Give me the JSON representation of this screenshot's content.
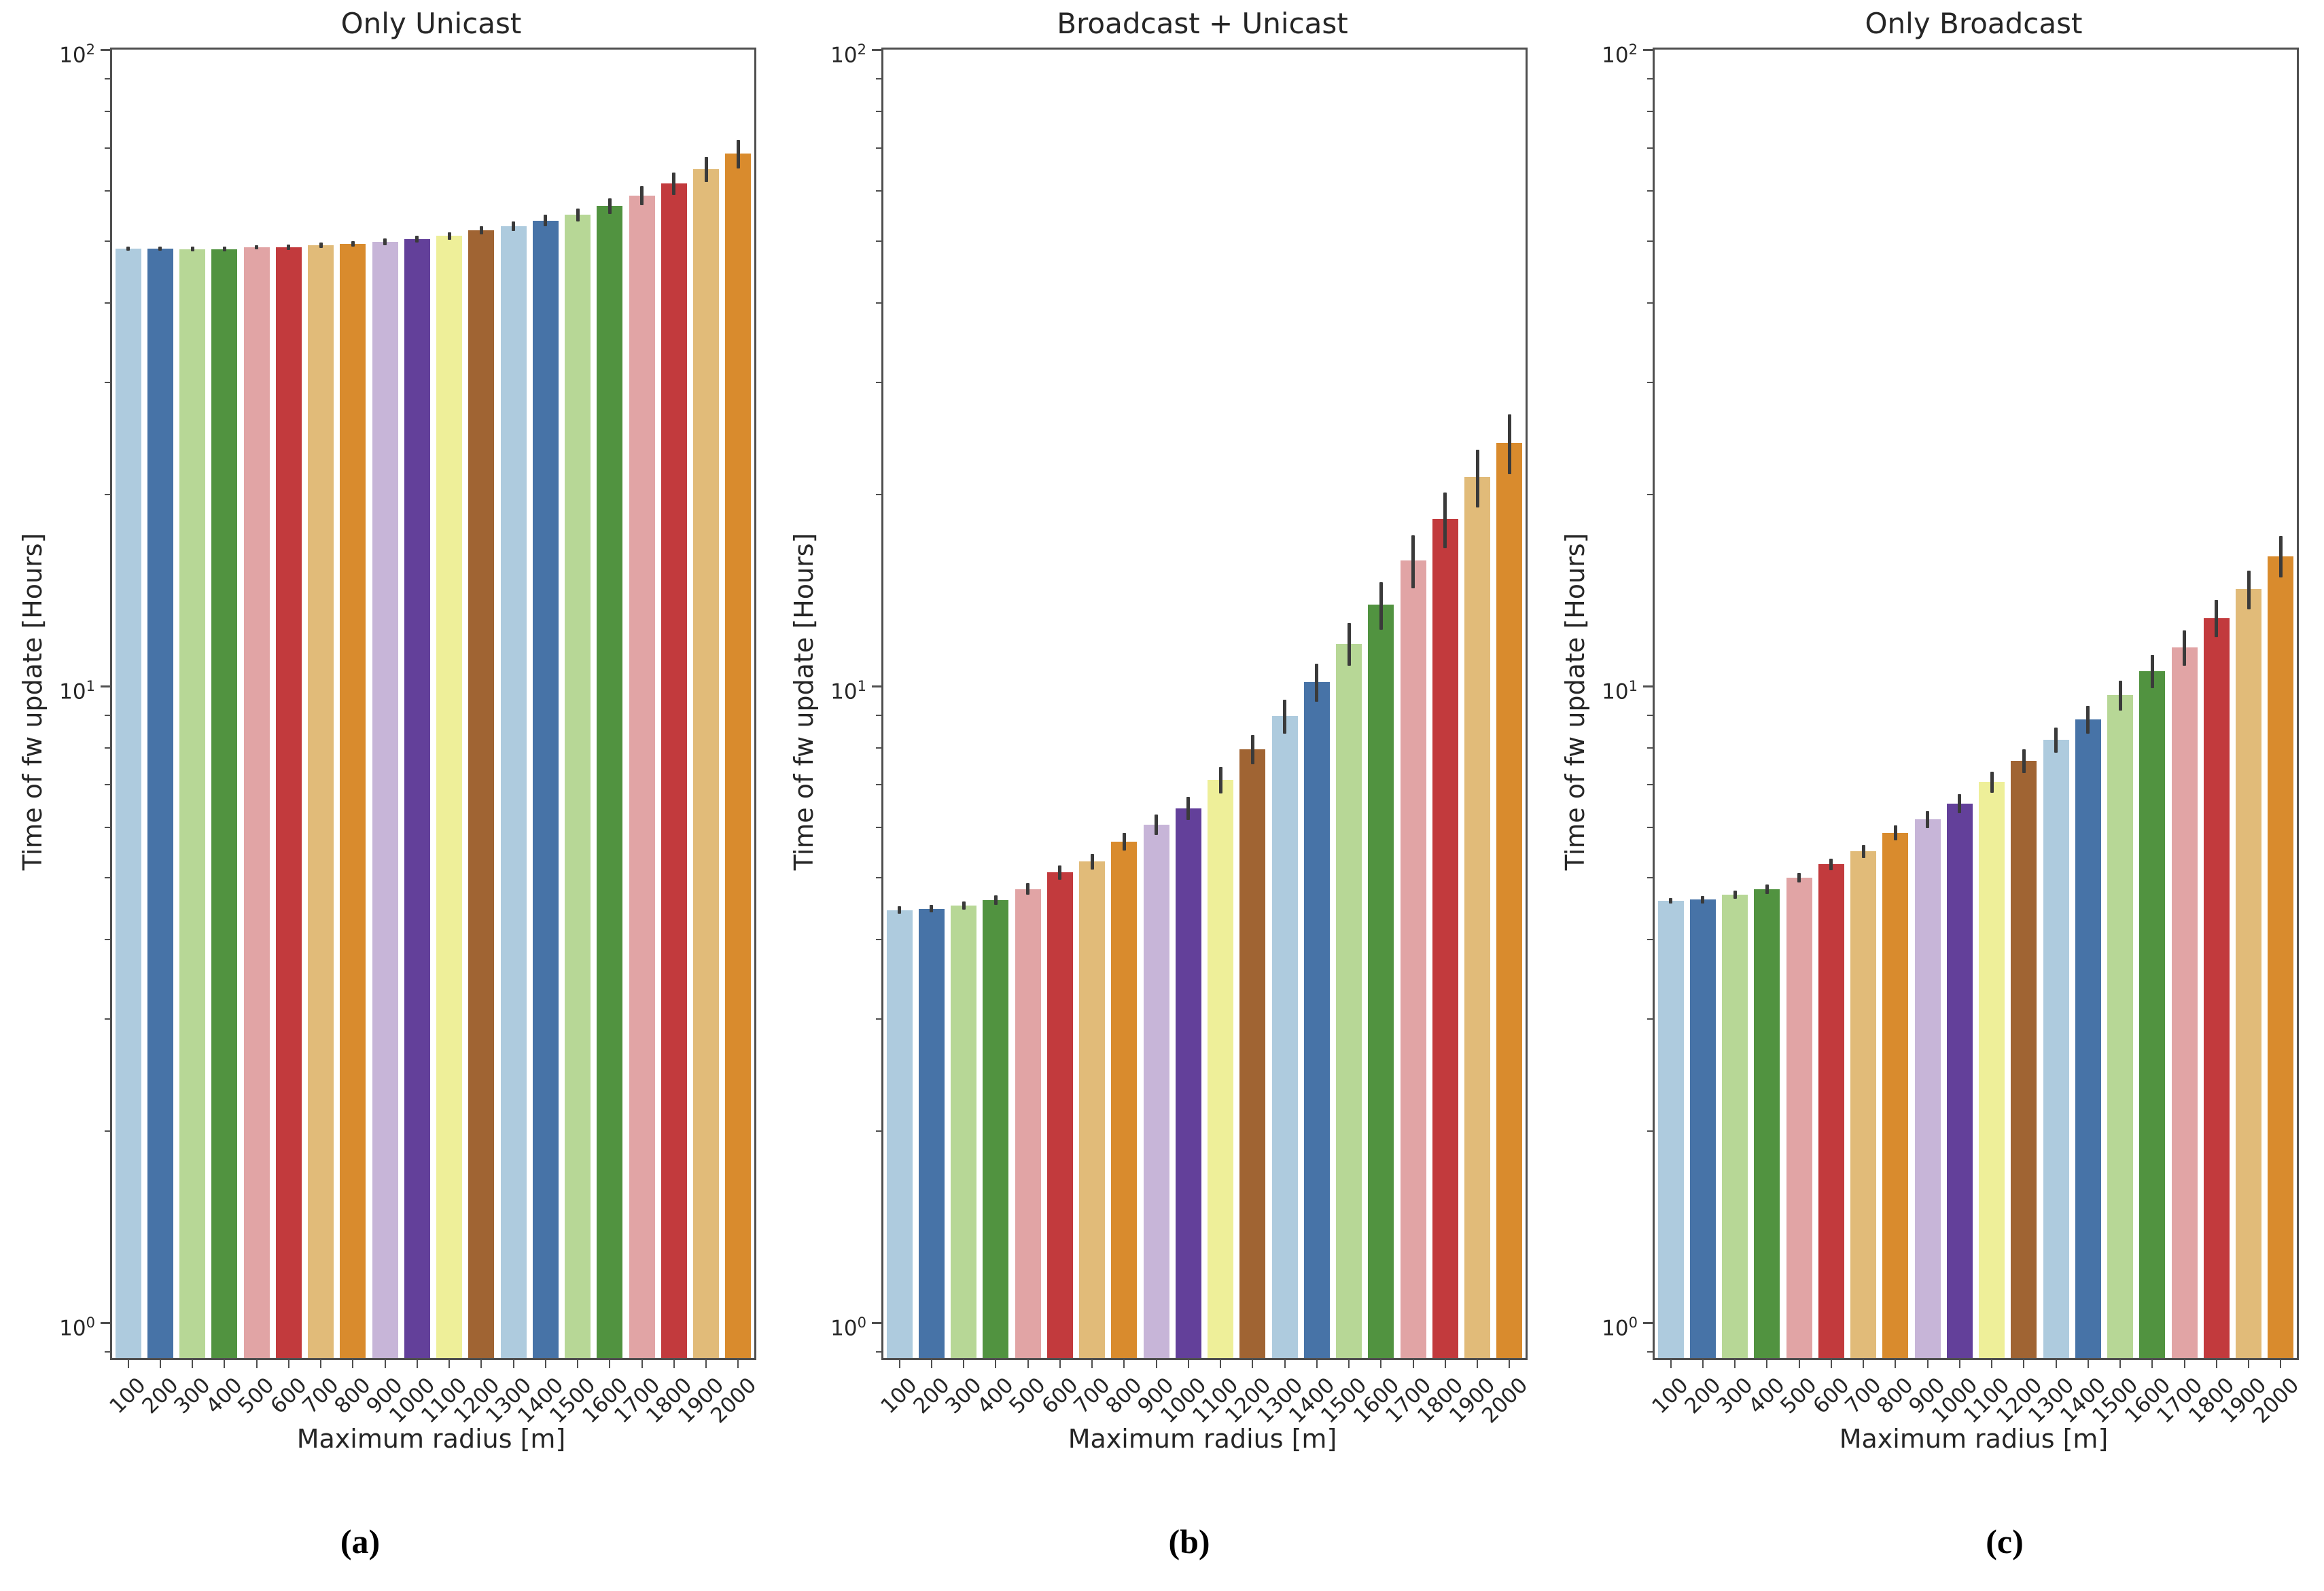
{
  "figure": {
    "ylabel": "Time of fw update [Hours]",
    "xlabel": "Maximum radius [m]",
    "y_ticks": [
      {
        "base": "10",
        "exp": "2",
        "value": 100
      },
      {
        "base": "10",
        "exp": "1",
        "value": 10
      },
      {
        "base": "10",
        "exp": "0",
        "value": 1
      }
    ],
    "palette": [
      "#aecbde",
      "#4773a7",
      "#b7d796",
      "#519340",
      "#e1a4a5",
      "#c23a3d",
      "#e1bb79",
      "#d98b2d",
      "#c7b5d8",
      "#63409a",
      "#eeef99",
      "#a06433"
    ],
    "error_color": "#3a3a3a",
    "spine_color": "#4f4f4f"
  },
  "chart_data": [
    {
      "type": "bar",
      "title": "Only Unicast",
      "caption": "(a)",
      "xlabel": "Maximum radius [m]",
      "ylabel": "Time of fw update [Hours]",
      "yscale": "log",
      "ylim": [
        0.88,
        100
      ],
      "categories": [
        "100",
        "200",
        "300",
        "400",
        "500",
        "600",
        "700",
        "800",
        "900",
        "1000",
        "1100",
        "1200",
        "1300",
        "1400",
        "1500",
        "1600",
        "1700",
        "1800",
        "1900",
        "2000"
      ],
      "values": [
        48.7,
        48.7,
        48.6,
        48.6,
        48.9,
        48.9,
        49.3,
        49.5,
        49.9,
        50.4,
        51.0,
        52.0,
        52.8,
        53.9,
        55.0,
        56.8,
        59.0,
        61.6,
        64.9,
        68.6
      ],
      "errors": [
        0.4,
        0.4,
        0.4,
        0.4,
        0.4,
        0.5,
        0.5,
        0.5,
        0.6,
        0.6,
        0.7,
        0.8,
        0.9,
        1.1,
        1.3,
        1.6,
        2.0,
        2.5,
        3.0,
        3.5
      ]
    },
    {
      "type": "bar",
      "title": "Broadcast + Unicast",
      "caption": "(b)",
      "xlabel": "Maximum radius [m]",
      "ylabel": "Time of fw update [Hours]",
      "yscale": "log",
      "ylim": [
        0.88,
        100
      ],
      "categories": [
        "100",
        "200",
        "300",
        "400",
        "500",
        "600",
        "700",
        "800",
        "900",
        "1000",
        "1100",
        "1200",
        "1300",
        "1400",
        "1500",
        "1600",
        "1700",
        "1800",
        "1900",
        "2000"
      ],
      "values": [
        4.45,
        4.47,
        4.52,
        4.61,
        4.8,
        5.1,
        5.3,
        5.7,
        6.06,
        6.43,
        7.12,
        7.95,
        8.97,
        10.14,
        11.66,
        13.42,
        15.75,
        18.3,
        21.3,
        24.1
      ],
      "errors": [
        0.06,
        0.06,
        0.07,
        0.08,
        0.1,
        0.13,
        0.15,
        0.18,
        0.22,
        0.27,
        0.34,
        0.42,
        0.55,
        0.7,
        0.9,
        1.15,
        1.5,
        1.85,
        2.2,
        2.6
      ]
    },
    {
      "type": "bar",
      "title": "Only Broadcast",
      "caption": "(c)",
      "xlabel": "Maximum radius [m]",
      "ylabel": "Time of fw update [Hours]",
      "yscale": "log",
      "ylim": [
        0.88,
        100
      ],
      "categories": [
        "100",
        "200",
        "300",
        "400",
        "500",
        "600",
        "700",
        "800",
        "900",
        "1000",
        "1100",
        "1200",
        "1300",
        "1400",
        "1500",
        "1600",
        "1700",
        "1800",
        "1900",
        "2000"
      ],
      "values": [
        4.6,
        4.62,
        4.7,
        4.8,
        5.0,
        5.25,
        5.5,
        5.88,
        6.18,
        6.54,
        7.07,
        7.63,
        8.23,
        8.87,
        9.68,
        10.56,
        11.5,
        12.8,
        14.2,
        16.0
      ],
      "errors": [
        0.05,
        0.06,
        0.07,
        0.08,
        0.09,
        0.11,
        0.13,
        0.16,
        0.19,
        0.23,
        0.27,
        0.32,
        0.38,
        0.45,
        0.53,
        0.63,
        0.74,
        0.86,
        1.0,
        1.2
      ]
    }
  ]
}
